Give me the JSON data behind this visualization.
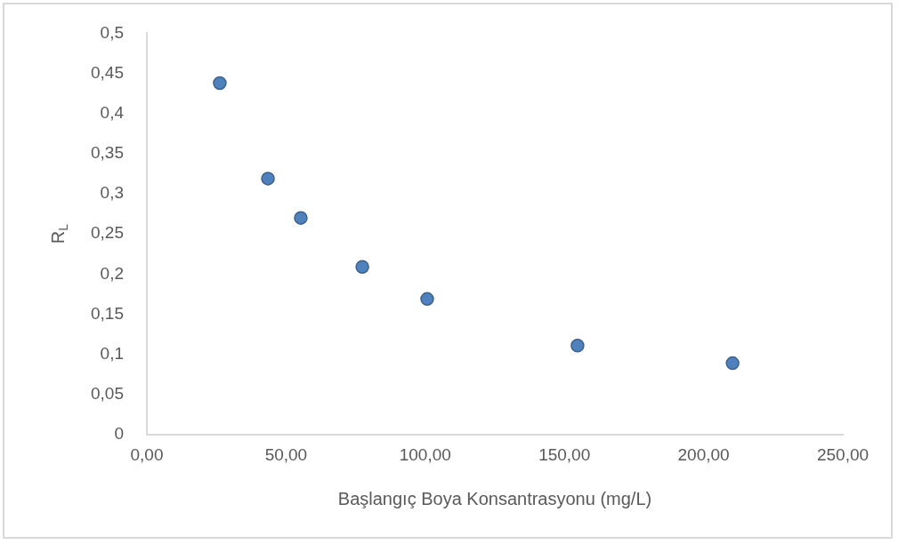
{
  "chart_data": {
    "type": "scatter",
    "xlabel": "Başlangıç Boya Konsantrasyonu (mg/L)",
    "ylabel": "R$_{L}$",
    "x": [
      26.2,
      43.5,
      55.3,
      77.4,
      100.7,
      154.7,
      210.4
    ],
    "series": [
      {
        "color": "#4f81bd",
        "values": [
          0.438,
          0.319,
          0.27,
          0.209,
          0.169,
          0.111,
          0.089
        ]
      }
    ],
    "xlim": [
      0,
      250
    ],
    "xticks": [
      {
        "value": 0,
        "label": "0,00"
      },
      {
        "value": 50,
        "label": "50,00"
      },
      {
        "value": 100,
        "label": "100,00"
      },
      {
        "value": 150,
        "label": "150,00"
      },
      {
        "value": 200,
        "label": "200,00"
      },
      {
        "value": 250,
        "label": "250,00"
      }
    ],
    "ylim": [
      0,
      0.5
    ],
    "yticks": [
      0,
      {
        "value": 0.05,
        "label": "0,05"
      },
      {
        "value": 0.1,
        "label": "0,1"
      },
      {
        "value": 0.15,
        "label": "0,15"
      },
      {
        "value": 0.2,
        "label": "0,2"
      },
      {
        "value": 0.25,
        "label": "0,25"
      },
      {
        "value": 0.3,
        "label": "0,3"
      },
      {
        "value": 0.35,
        "label": "0,35"
      },
      {
        "value": 0.4,
        "label": "0,4"
      },
      {
        "value": 0.45,
        "label": "0,45"
      },
      {
        "value": 0.5,
        "label": "0,5"
      }
    ],
    "grid": false,
    "legend": false,
    "marker": "circle"
  }
}
